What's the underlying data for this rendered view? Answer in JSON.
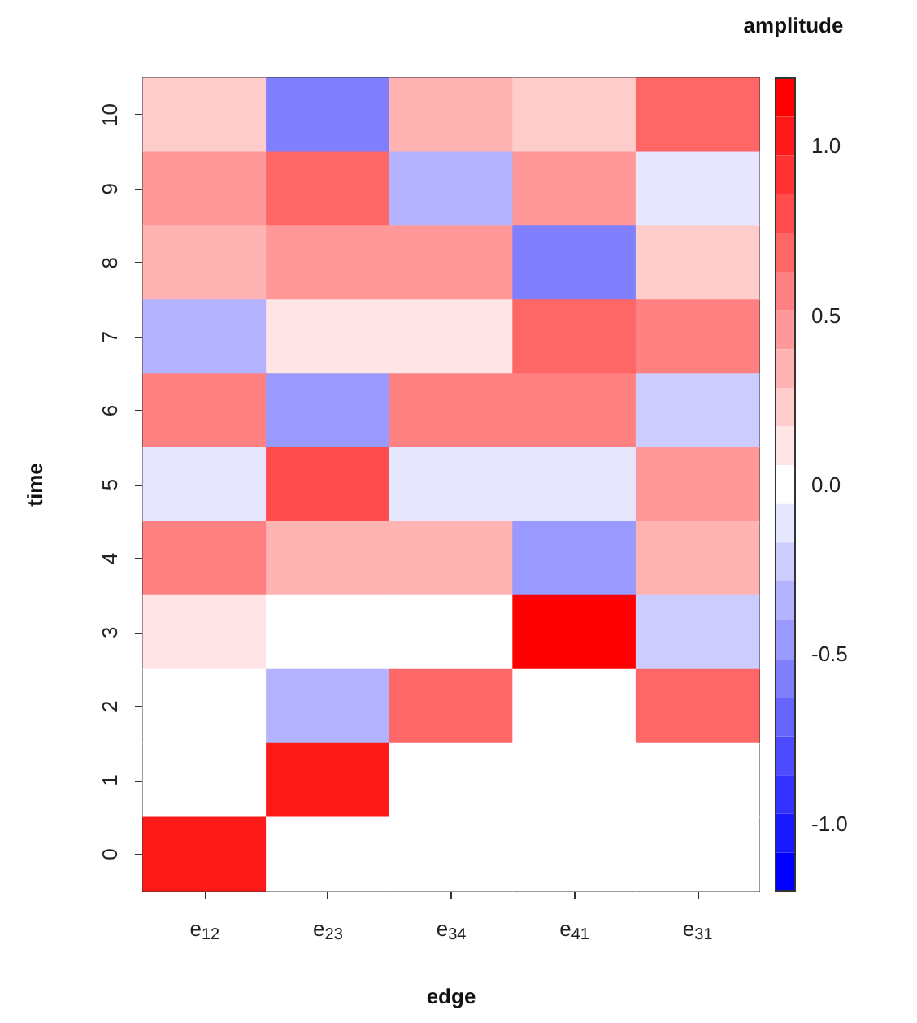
{
  "chart_data": {
    "type": "heatmap",
    "xlabel": "edge",
    "ylabel": "time",
    "clabel": "amplitude",
    "categories": [
      "e$_{12}$",
      "e$_{23}$",
      "e$_{34}$",
      "e$_{41}$",
      "e$_{31}$"
    ],
    "y_categories": [
      "10",
      "9",
      "8",
      "7",
      "6",
      "5",
      "4",
      "3",
      "2",
      "1",
      "0"
    ],
    "cells": [
      [
        0.23,
        -0.57,
        0.34,
        0.23,
        0.69
      ],
      [
        0.46,
        0.69,
        -0.34,
        0.46,
        -0.11
      ],
      [
        0.34,
        0.46,
        0.46,
        -0.57,
        0.23
      ],
      [
        -0.34,
        0.11,
        0.11,
        0.69,
        0.57
      ],
      [
        0.57,
        -0.46,
        0.57,
        0.57,
        -0.23
      ],
      [
        -0.11,
        0.8,
        -0.11,
        -0.11,
        0.46
      ],
      [
        0.57,
        0.34,
        0.34,
        -0.46,
        0.34
      ],
      [
        0.11,
        0,
        0,
        1.14,
        -0.23
      ],
      [
        0,
        -0.34,
        0.69,
        0,
        0.69
      ],
      [
        0,
        1.03,
        0,
        0,
        0
      ],
      [
        1.03,
        0,
        0,
        0,
        0
      ]
    ],
    "clim": [
      -1.2,
      1.2
    ],
    "cticks": [
      {
        "value": -1,
        "label": "-1.0"
      },
      {
        "value": -0.5,
        "label": "-0.5"
      },
      {
        "value": 0,
        "label": "0.0"
      },
      {
        "value": 0.5,
        "label": "0.5"
      },
      {
        "value": 1,
        "label": "1.0"
      }
    ]
  }
}
